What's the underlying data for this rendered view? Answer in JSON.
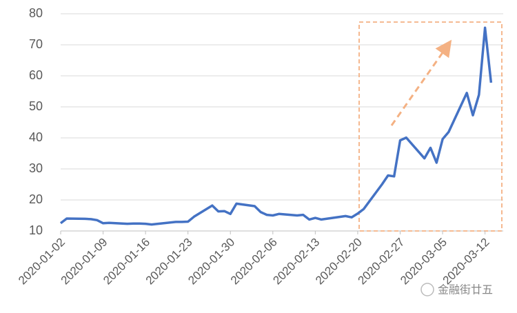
{
  "chart_data": {
    "type": "line",
    "x": [
      "2020-01-02",
      "2020-01-03",
      "2020-01-06",
      "2020-01-07",
      "2020-01-08",
      "2020-01-09",
      "2020-01-10",
      "2020-01-13",
      "2020-01-14",
      "2020-01-15",
      "2020-01-16",
      "2020-01-17",
      "2020-01-21",
      "2020-01-22",
      "2020-01-23",
      "2020-01-24",
      "2020-01-27",
      "2020-01-28",
      "2020-01-29",
      "2020-01-30",
      "2020-01-31",
      "2020-02-03",
      "2020-02-04",
      "2020-02-05",
      "2020-02-06",
      "2020-02-07",
      "2020-02-10",
      "2020-02-11",
      "2020-02-12",
      "2020-02-13",
      "2020-02-14",
      "2020-02-18",
      "2020-02-19",
      "2020-02-20",
      "2020-02-21",
      "2020-02-24",
      "2020-02-25",
      "2020-02-26",
      "2020-02-27",
      "2020-02-28",
      "2020-03-02",
      "2020-03-03",
      "2020-03-04",
      "2020-03-05",
      "2020-03-06",
      "2020-03-09",
      "2020-03-10",
      "2020-03-11",
      "2020-03-12",
      "2020-03-13"
    ],
    "series": [
      {
        "color": "#4472c4",
        "values": [
          12.5,
          14.0,
          13.9,
          13.8,
          13.5,
          12.5,
          12.6,
          12.3,
          12.4,
          12.4,
          12.3,
          12.1,
          12.9,
          12.9,
          13.0,
          14.6,
          18.2,
          16.3,
          16.4,
          15.5,
          18.8,
          18.0,
          16.1,
          15.2,
          15.0,
          15.5,
          15.0,
          15.2,
          13.7,
          14.2,
          13.7,
          14.8,
          14.4,
          15.6,
          17.1,
          25.0,
          27.9,
          27.6,
          39.2,
          40.1,
          33.4,
          36.8,
          32.0,
          39.6,
          41.9,
          54.5,
          47.3,
          53.9,
          75.5,
          57.8
        ]
      }
    ],
    "xlim": [
      "2020-01-02",
      "2020-03-15"
    ],
    "xticks": [
      "2020-01-02",
      "2020-01-09",
      "2020-01-16",
      "2020-01-23",
      "2020-01-30",
      "2020-02-06",
      "2020-02-13",
      "2020-02-20",
      "2020-02-27",
      "2020-03-05",
      "2020-03-12"
    ],
    "ylim": [
      10,
      80
    ],
    "yticks": [
      10,
      20,
      30,
      40,
      50,
      60,
      70,
      80
    ],
    "grid": true,
    "watermark": "金融街廿五"
  }
}
